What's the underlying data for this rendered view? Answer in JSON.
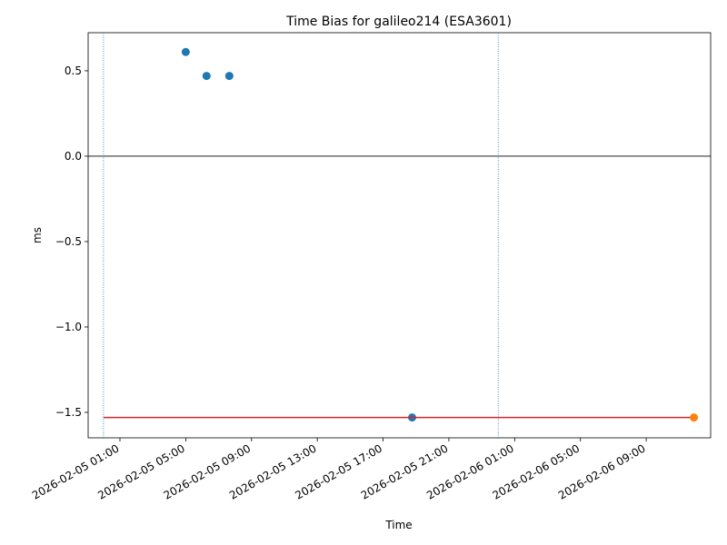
{
  "chart_data": {
    "type": "scatter",
    "title": "Time Bias for galileo214 (ESA3601)",
    "xlabel": "Time",
    "ylabel": "ms",
    "xlim": [
      "2026-02-04 23:04",
      "2026-02-06 12:55"
    ],
    "xticks": [
      "2026-02-05 01:00",
      "2026-02-05 05:00",
      "2026-02-05 09:00",
      "2026-02-05 13:00",
      "2026-02-05 17:00",
      "2026-02-05 21:00",
      "2026-02-06 01:00",
      "2026-02-06 05:00",
      "2026-02-06 09:00"
    ],
    "ylim": [
      -1.649,
      0.723
    ],
    "yticks": [
      {
        "value": -1.5,
        "label": "−1.5"
      },
      {
        "value": -1.0,
        "label": "−1.0"
      },
      {
        "value": -0.5,
        "label": "−0.5"
      },
      {
        "value": 0,
        "label": "0.0"
      },
      0.5
    ],
    "hlines": [
      {
        "value": 0,
        "color": "#000000"
      }
    ],
    "vlines": [
      {
        "x": "2026-02-05 00:00",
        "color": "#1f77b4"
      },
      {
        "x": "2026-02-06 00:00",
        "color": "#1f77b4"
      }
    ],
    "series": [
      {
        "type": "scatter",
        "color": "#1f77b4",
        "x": [
          "2026-02-05 05:00",
          "2026-02-05 06:16",
          "2026-02-05 07:39",
          "2026-02-05 18:46"
        ],
        "values": [
          0.61,
          0.47,
          0.47,
          -1.53
        ]
      },
      {
        "type": "line",
        "color": "#d62728",
        "x": [
          "2026-02-05 00:00",
          "2026-02-06 11:54"
        ],
        "values": [
          -1.53,
          -1.53
        ]
      },
      {
        "type": "scatter",
        "color": "#ff7f0e",
        "x": [
          "2026-02-06 11:54"
        ],
        "values": [
          -1.53
        ]
      }
    ]
  }
}
